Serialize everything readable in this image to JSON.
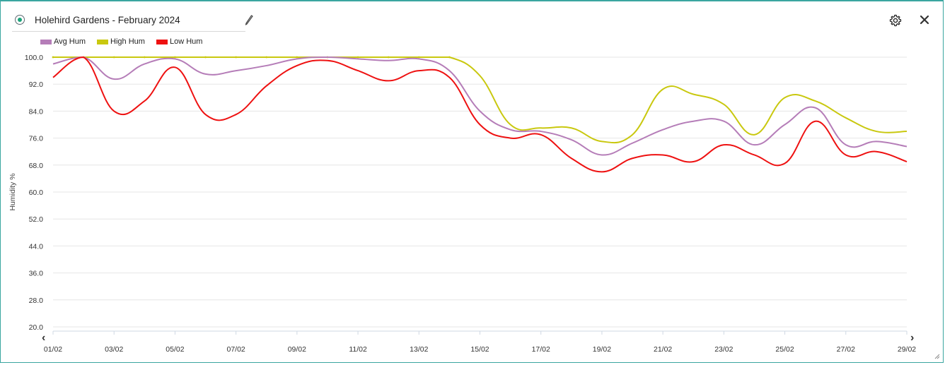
{
  "widget": {
    "title": "Holehird Gardens - February 2024",
    "accent_color": "#3aa6a0",
    "status_color": "#1aa37a",
    "icons": [
      "radio-icon",
      "pencil-icon",
      "gear-icon",
      "close-icon",
      "chevron-left-icon",
      "chevron-right-icon",
      "resize-grip-icon"
    ]
  },
  "legend": [
    {
      "label": "Avg Hum",
      "color": "#b57db8"
    },
    {
      "label": "High Hum",
      "color": "#c9c80f"
    },
    {
      "label": "Low Hum",
      "color": "#ee1111"
    }
  ],
  "chart_data": {
    "type": "line",
    "ylabel": "Humidity %",
    "xlabel": "",
    "ylim": [
      20,
      100
    ],
    "y_ticks": [
      "100.0",
      "92.0",
      "84.0",
      "76.0",
      "68.0",
      "60.0",
      "52.0",
      "44.0",
      "36.0",
      "28.0",
      "20.0"
    ],
    "x_ticks": [
      "01/02",
      "03/02",
      "05/02",
      "07/02",
      "09/02",
      "11/02",
      "13/02",
      "15/02",
      "17/02",
      "19/02",
      "21/02",
      "23/02",
      "25/02",
      "27/02",
      "29/02"
    ],
    "grid": "horizontal",
    "legend_position": "top-left",
    "x": [
      1,
      2,
      3,
      4,
      5,
      6,
      7,
      8,
      9,
      10,
      11,
      12,
      13,
      14,
      15,
      16,
      17,
      18,
      19,
      20,
      21,
      22,
      23,
      24,
      25,
      26,
      27,
      28,
      29
    ],
    "series": [
      {
        "name": "Avg Hum",
        "color": "#b57db8",
        "values": [
          98,
          100,
          93.5,
          98,
          99.5,
          95,
          96,
          97.5,
          99.5,
          100,
          99.5,
          99,
          99.5,
          96,
          84,
          78.5,
          78,
          75.5,
          71,
          74.5,
          78.5,
          81,
          81,
          74,
          80,
          85,
          74,
          75,
          73.5
        ]
      },
      {
        "name": "High Hum",
        "color": "#c9c80f",
        "values": [
          100,
          100,
          100,
          100,
          100,
          100,
          100,
          100,
          100,
          100,
          100,
          100,
          100,
          100,
          94.5,
          80,
          79,
          79,
          75,
          77,
          90.5,
          89,
          86,
          77,
          88,
          87,
          82,
          78,
          78
        ]
      },
      {
        "name": "Low Hum",
        "color": "#ee1111",
        "values": [
          94,
          100,
          84,
          87,
          97,
          83,
          83,
          91.5,
          97.5,
          99,
          96,
          93,
          96,
          94,
          80,
          76,
          77,
          70,
          66,
          70,
          71,
          69,
          74,
          71,
          68.5,
          81,
          71,
          72,
          69
        ]
      }
    ]
  }
}
